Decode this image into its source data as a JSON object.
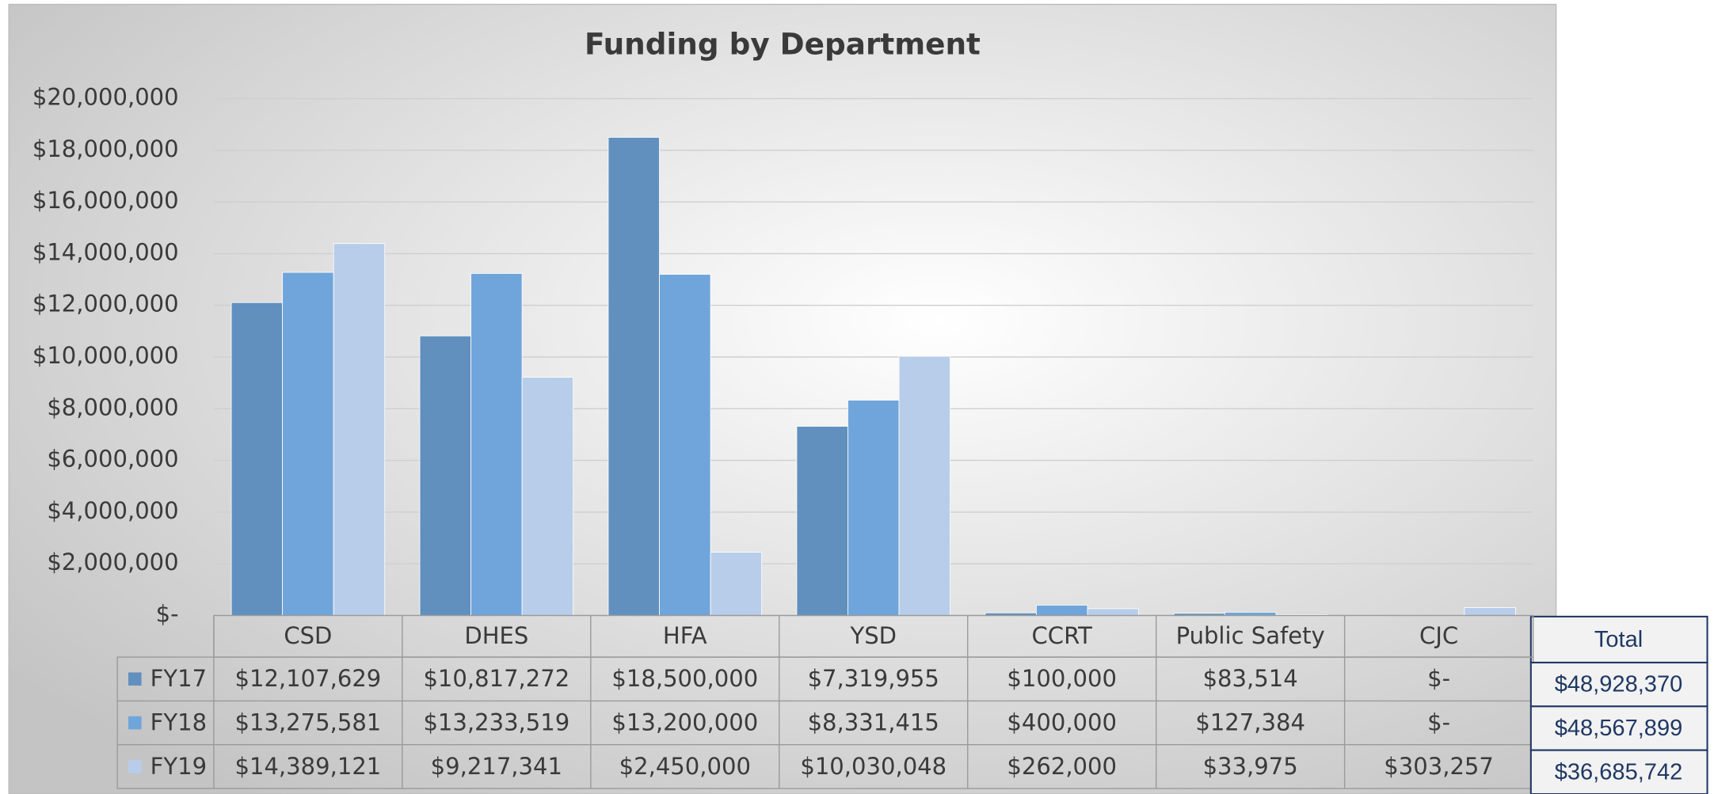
{
  "chart_data": {
    "type": "bar",
    "title": "Funding by Department",
    "categories": [
      "CSD",
      "DHES",
      "HFA",
      "YSD",
      "CCRT",
      "Public Safety",
      "CJC"
    ],
    "series": [
      {
        "name": "FY17",
        "color": "#6190bf",
        "values": [
          12107629,
          10817272,
          18500000,
          7319955,
          100000,
          83514,
          0
        ],
        "value_labels": [
          "$12,107,629",
          "$10,817,272",
          "$18,500,000",
          "$7,319,955",
          "$100,000",
          "$83,514",
          "$-"
        ]
      },
      {
        "name": "FY18",
        "color": "#70a5db",
        "values": [
          13275581,
          13233519,
          13200000,
          8331415,
          400000,
          127384,
          0
        ],
        "value_labels": [
          "$13,275,581",
          "$13,233,519",
          "$13,200,000",
          "$8,331,415",
          "$400,000",
          "$127,384",
          "$-"
        ]
      },
      {
        "name": "FY19",
        "color": "#b8cde9",
        "values": [
          14389121,
          9217341,
          2450000,
          10030048,
          262000,
          33975,
          303257
        ],
        "value_labels": [
          "$14,389,121",
          "$9,217,341",
          "$2,450,000",
          "$10,030,048",
          "$262,000",
          "$33,975",
          "$303,257"
        ]
      }
    ],
    "ylim": [
      0,
      20000000
    ],
    "yticks": [
      {
        "value": 0,
        "label": "$-"
      },
      {
        "value": 2000000,
        "label": "$2,000,000"
      },
      {
        "value": 4000000,
        "label": "$4,000,000"
      },
      {
        "value": 6000000,
        "label": "$6,000,000"
      },
      {
        "value": 8000000,
        "label": "$8,000,000"
      },
      {
        "value": 10000000,
        "label": "$10,000,000"
      },
      {
        "value": 12000000,
        "label": "$12,000,000"
      },
      {
        "value": 14000000,
        "label": "$14,000,000"
      },
      {
        "value": 16000000,
        "label": "$16,000,000"
      },
      {
        "value": 18000000,
        "label": "$18,000,000"
      },
      {
        "value": 20000000,
        "label": "$20,000,000"
      }
    ],
    "grid": true,
    "totals": {
      "title": "Total",
      "labels": [
        "$48,928,370",
        "$48,567,899",
        "$36,685,742"
      ]
    }
  }
}
